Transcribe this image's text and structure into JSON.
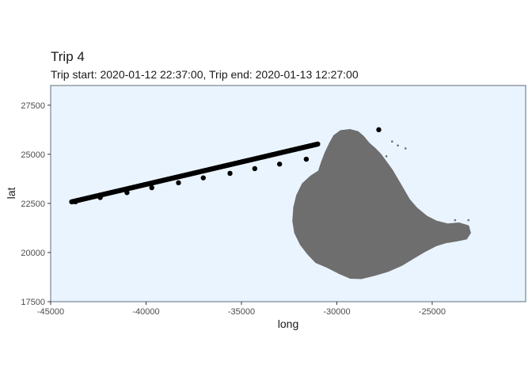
{
  "chart_data": {
    "type": "scatter",
    "title": "Trip 4",
    "subtitle": "Trip start: 2020-01-12 22:37:00, Trip end: 2020-01-13 12:27:00",
    "xlabel": "long",
    "ylabel": "lat",
    "xlim": [
      -45000,
      -20100
    ],
    "ylim": [
      17500,
      28500
    ],
    "x_ticks": [
      -45000,
      -40000,
      -35000,
      -30000,
      -25000
    ],
    "x_tick_labels": [
      "-45000",
      "-40000",
      "-35000",
      "-30000",
      "-25000"
    ],
    "y_ticks": [
      17500,
      20000,
      22500,
      25000,
      27500
    ],
    "y_tick_labels": [
      "17500",
      "20000",
      "22500",
      "25000",
      "27500"
    ],
    "grid": false,
    "legend": "none",
    "colors": {
      "panel_background": "#eaf4fe",
      "panel_border": "#5a6e80",
      "land": "#6e6e6e",
      "points": "#000000",
      "text": "#1a1a1a",
      "tick_text": "#4d4d4d"
    },
    "series": [
      {
        "kind": "track-segment",
        "from": [
          -43900,
          22580
        ],
        "to": [
          -31000,
          25520
        ],
        "count": 260
      },
      {
        "kind": "scattered-points",
        "x": [
          -43700,
          -42400,
          -41000,
          -39700,
          -38300,
          -37000,
          -35600,
          -34300,
          -33000,
          -31600,
          -27800
        ],
        "y": [
          22580,
          22800,
          23050,
          23300,
          23550,
          23800,
          24030,
          24270,
          24500,
          24750,
          26250
        ]
      }
    ],
    "land": {
      "outline": [
        [
          -29800,
          26200
        ],
        [
          -29300,
          26250
        ],
        [
          -28900,
          26150
        ],
        [
          -28600,
          25900
        ],
        [
          -28300,
          25550
        ],
        [
          -28000,
          25300
        ],
        [
          -27700,
          25000
        ],
        [
          -27400,
          24600
        ],
        [
          -27100,
          24200
        ],
        [
          -26800,
          23700
        ],
        [
          -26500,
          23200
        ],
        [
          -26200,
          22700
        ],
        [
          -25800,
          22250
        ],
        [
          -25300,
          21850
        ],
        [
          -24800,
          21600
        ],
        [
          -24200,
          21450
        ],
        [
          -23600,
          21500
        ],
        [
          -23100,
          21350
        ],
        [
          -23000,
          21000
        ],
        [
          -23200,
          20700
        ],
        [
          -23700,
          20600
        ],
        [
          -24300,
          20500
        ],
        [
          -24800,
          20350
        ],
        [
          -25400,
          20050
        ],
        [
          -26000,
          19700
        ],
        [
          -26600,
          19350
        ],
        [
          -27300,
          19050
        ],
        [
          -28000,
          18850
        ],
        [
          -28700,
          18680
        ],
        [
          -29300,
          18700
        ],
        [
          -29900,
          18950
        ],
        [
          -30500,
          19250
        ],
        [
          -31100,
          19500
        ],
        [
          -31500,
          19900
        ],
        [
          -31900,
          20400
        ],
        [
          -32200,
          21000
        ],
        [
          -32300,
          21600
        ],
        [
          -32250,
          22300
        ],
        [
          -32100,
          22900
        ],
        [
          -31800,
          23500
        ],
        [
          -31350,
          23900
        ],
        [
          -30950,
          24150
        ],
        [
          -30800,
          24600
        ],
        [
          -30600,
          25100
        ],
        [
          -30350,
          25600
        ],
        [
          -30150,
          25950
        ]
      ],
      "islets": [
        [
          -27100,
          25650
        ],
        [
          -26800,
          25450
        ],
        [
          -26400,
          25300
        ],
        [
          -27400,
          24900
        ],
        [
          -23800,
          21650
        ],
        [
          -23100,
          21650
        ]
      ]
    }
  }
}
